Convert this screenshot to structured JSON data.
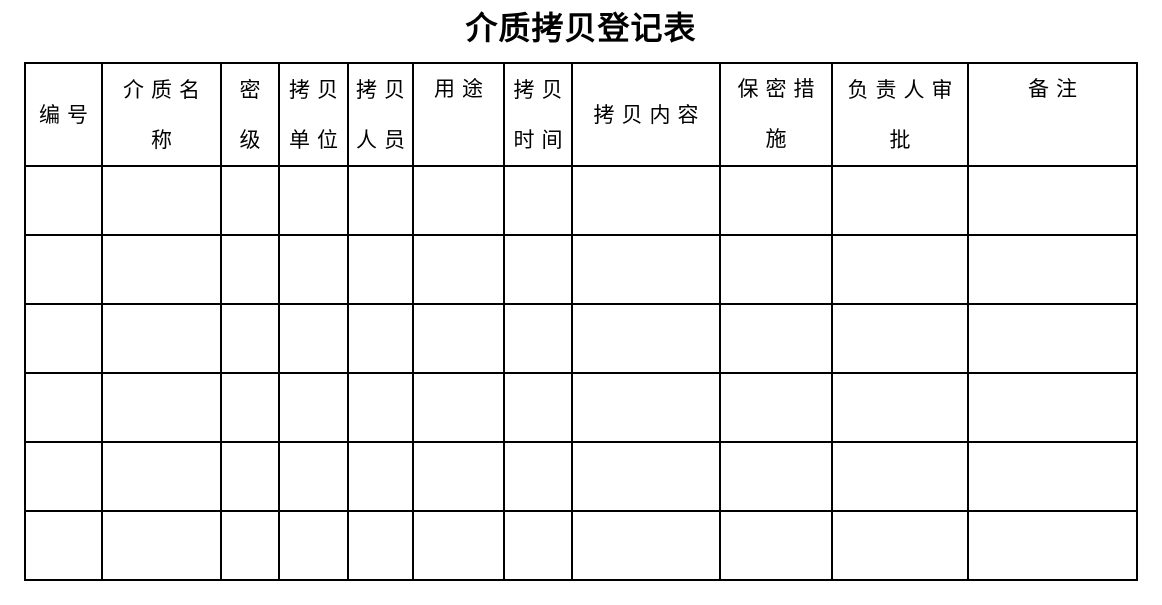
{
  "page": {
    "title": "介质拷贝登记表",
    "background_color": "#ffffff",
    "text_color": "#000000",
    "border_color": "#000000"
  },
  "table": {
    "headers": [
      "编号",
      "介质名称",
      "密\n级",
      "拷贝\n单位",
      "拷贝\n人员",
      "用途",
      "拷贝\n时间",
      "拷贝内容",
      "保密措施",
      "负责人审\n批",
      "备注"
    ],
    "column_count": 11,
    "empty_rows": 6,
    "cell_value_empty": ""
  }
}
